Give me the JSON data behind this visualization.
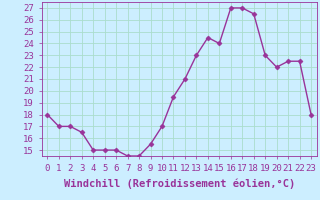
{
  "x": [
    0,
    1,
    2,
    3,
    4,
    5,
    6,
    7,
    8,
    9,
    10,
    11,
    12,
    13,
    14,
    15,
    16,
    17,
    18,
    19,
    20,
    21,
    22,
    23
  ],
  "y": [
    18,
    17,
    17,
    16.5,
    15,
    15,
    15,
    14.5,
    14.5,
    15.5,
    17,
    19.5,
    21,
    23,
    24.5,
    24,
    27,
    27,
    26.5,
    23,
    22,
    22.5,
    22.5,
    18
  ],
  "line_color": "#993399",
  "marker": "D",
  "marker_size": 2.5,
  "background_color": "#cceeff",
  "grid_color": "#aaddcc",
  "xlabel": "Windchill (Refroidissement éolien,°C)",
  "xlabel_fontsize": 7.5,
  "ylabel_ticks": [
    15,
    16,
    17,
    18,
    19,
    20,
    21,
    22,
    23,
    24,
    25,
    26,
    27
  ],
  "xlim": [
    -0.5,
    23.5
  ],
  "ylim": [
    14.5,
    27.5
  ],
  "xticks": [
    0,
    1,
    2,
    3,
    4,
    5,
    6,
    7,
    8,
    9,
    10,
    11,
    12,
    13,
    14,
    15,
    16,
    17,
    18,
    19,
    20,
    21,
    22,
    23
  ],
  "tick_fontsize": 6.5,
  "line_width": 1.0
}
